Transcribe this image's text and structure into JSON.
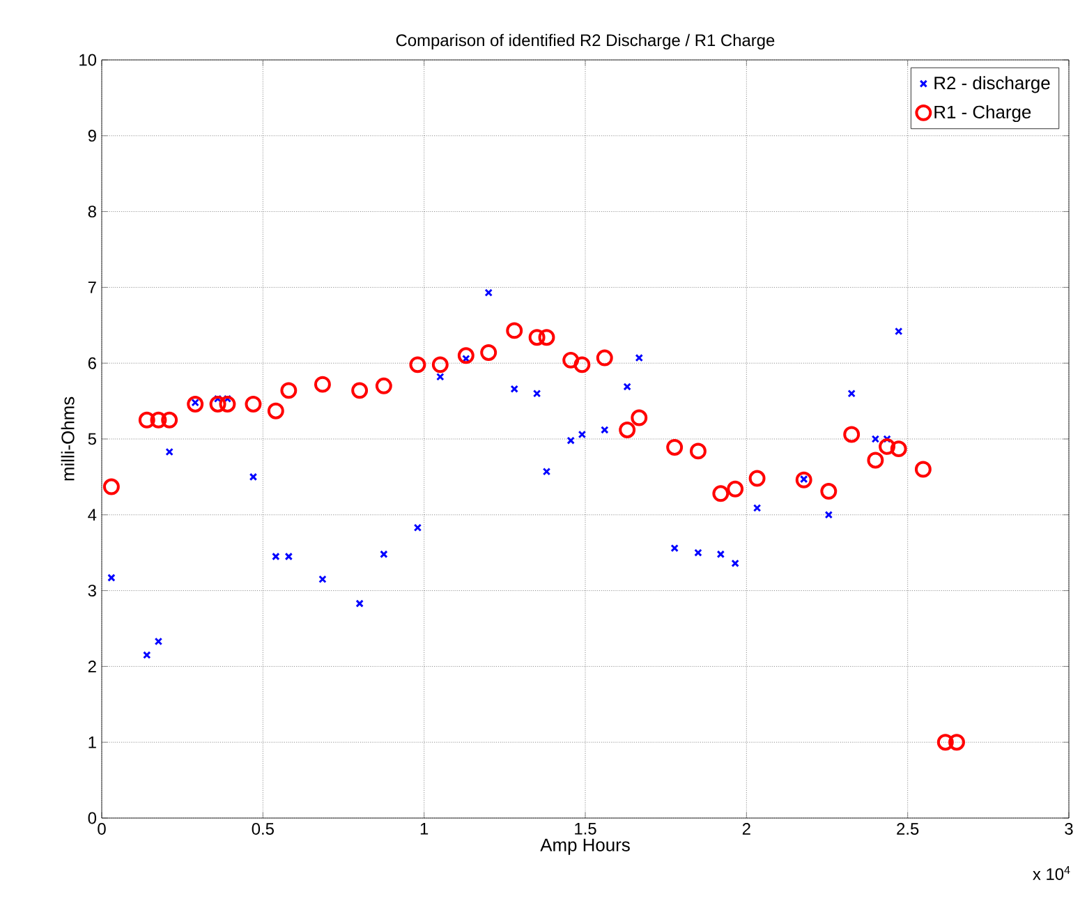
{
  "chart_data": {
    "type": "scatter",
    "title": "Comparison of identified R2 Discharge / R1 Charge",
    "xlabel": "Amp Hours",
    "ylabel": "milli-Ohms",
    "annotations": [
      "x 10$^{4}$"
    ],
    "xlim": [
      0,
      3
    ],
    "xticks": [
      0,
      0.5,
      1,
      1.5,
      2,
      2.5,
      3
    ],
    "ylim": [
      0,
      10
    ],
    "yticks": [
      0,
      1,
      2,
      3,
      4,
      5,
      6,
      7,
      8,
      9,
      10
    ],
    "grid": true,
    "legend": "top right",
    "series": [
      {
        "name": "R2 - discharge",
        "color": "#0000ff",
        "marker": "cross",
        "x": [
          0.03,
          0.14,
          0.176,
          0.21,
          0.29,
          0.36,
          0.39,
          0.47,
          0.54,
          0.58,
          0.685,
          0.8,
          0.875,
          0.98,
          1.05,
          1.13,
          1.2,
          1.28,
          1.35,
          1.38,
          1.455,
          1.49,
          1.56,
          1.63,
          1.667,
          1.777,
          1.85,
          1.92,
          1.965,
          2.033,
          2.178,
          2.255,
          2.326,
          2.4,
          2.436,
          2.472
        ],
        "values": [
          3.17,
          2.15,
          2.33,
          4.83,
          5.48,
          5.53,
          5.53,
          4.5,
          3.45,
          3.45,
          3.15,
          2.83,
          3.48,
          3.83,
          5.82,
          6.06,
          6.93,
          5.66,
          5.6,
          4.57,
          4.98,
          5.06,
          5.12,
          5.69,
          6.07,
          3.56,
          3.5,
          3.48,
          3.36,
          4.09,
          4.47,
          4.0,
          5.6,
          5.0,
          5.0,
          6.42
        ]
      },
      {
        "name": "R1 - Charge",
        "color": "#ff0000",
        "marker": "circle",
        "x": [
          0.03,
          0.14,
          0.176,
          0.21,
          0.29,
          0.36,
          0.39,
          0.47,
          0.54,
          0.58,
          0.685,
          0.8,
          0.875,
          0.98,
          1.05,
          1.13,
          1.2,
          1.28,
          1.35,
          1.38,
          1.455,
          1.49,
          1.56,
          1.63,
          1.667,
          1.777,
          1.85,
          1.92,
          1.965,
          2.033,
          2.178,
          2.255,
          2.326,
          2.4,
          2.436,
          2.472,
          2.548,
          2.617,
          2.652
        ],
        "values": [
          4.37,
          5.25,
          5.25,
          5.25,
          5.46,
          5.46,
          5.46,
          5.46,
          5.37,
          5.64,
          5.72,
          5.64,
          5.7,
          5.98,
          5.98,
          6.1,
          6.14,
          6.43,
          6.34,
          6.34,
          6.04,
          5.98,
          6.07,
          5.12,
          5.28,
          4.89,
          4.84,
          4.28,
          4.34,
          4.48,
          4.46,
          4.31,
          5.06,
          4.72,
          4.9,
          4.87,
          4.6,
          1.0,
          1.0
        ]
      }
    ]
  }
}
